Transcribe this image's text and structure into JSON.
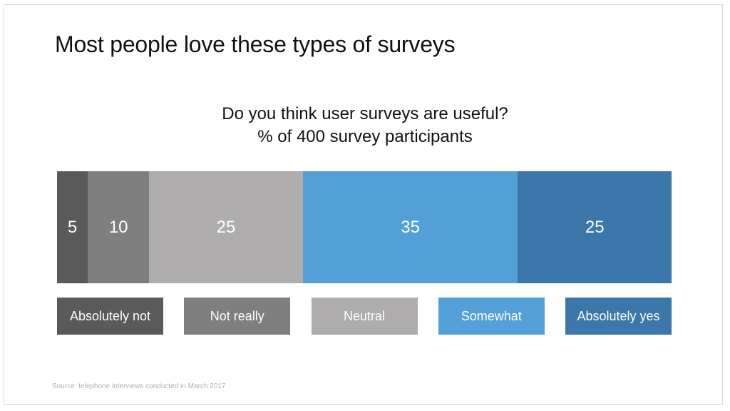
{
  "slide": {
    "title": "Most people love these types of surveys",
    "source": "Source: telephone interviews conducted in March 2017"
  },
  "chart_data": {
    "type": "bar",
    "orientation": "horizontal-stacked-100",
    "title": "Do you think user surveys are useful?",
    "subtitle": "% of 400 survey participants",
    "categories": [
      "Absolutely not",
      "Not really",
      "Neutral",
      "Somewhat",
      "Absolutely yes"
    ],
    "values": [
      5,
      10,
      25,
      35,
      25
    ],
    "value_labels": [
      "5",
      "10",
      "25",
      "35",
      "25"
    ],
    "colors": [
      "#5a5a5a",
      "#7f7f7f",
      "#aeacac",
      "#53a0d8",
      "#3b77a8"
    ],
    "legend_placement": "bottom",
    "grid": false
  }
}
